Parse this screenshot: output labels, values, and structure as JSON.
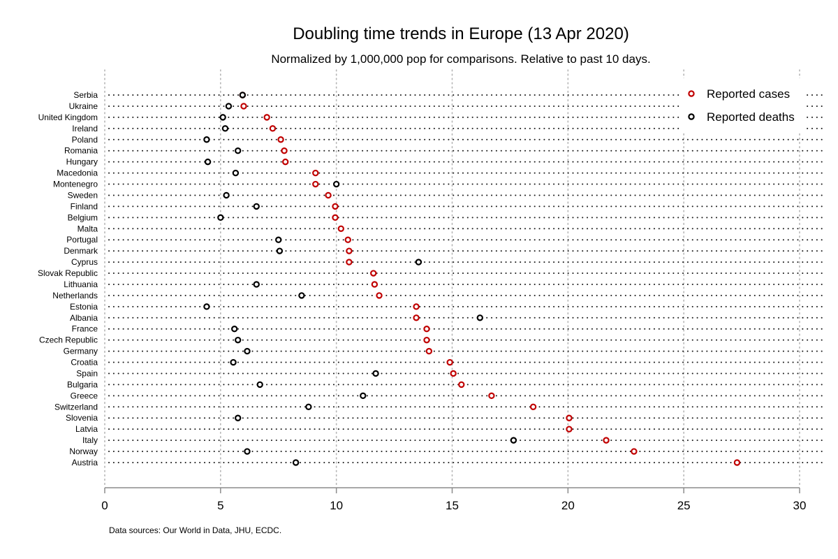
{
  "chart_data": {
    "type": "scatter",
    "title": "Doubling time trends in Europe (13 Apr 2020)",
    "subtitle": "Normalized by 1,000,000 pop for comparisons. Relative to past 10 days.",
    "xlabel": "",
    "ylabel": "",
    "xlim": [
      0,
      30
    ],
    "xticks": [
      0,
      5,
      10,
      15,
      20,
      25,
      30
    ],
    "grid": true,
    "legend_position": "top-right",
    "source": "Data sources: Our World in Data, JHU, ECDC.",
    "categories": [
      "Serbia",
      "Ukraine",
      "United Kingdom",
      "Ireland",
      "Poland",
      "Romania",
      "Hungary",
      "Macedonia",
      "Montenegro",
      "Sweden",
      "Finland",
      "Belgium",
      "Malta",
      "Portugal",
      "Denmark",
      "Cyprus",
      "Slovak Republic",
      "Lithuania",
      "Netherlands",
      "Estonia",
      "Albania",
      "France",
      "Czech Republic",
      "Germany",
      "Croatia",
      "Spain",
      "Bulgaria",
      "Greece",
      "Switzerland",
      "Slovenia",
      "Latvia",
      "Italy",
      "Norway",
      "Austria"
    ],
    "series": [
      {
        "name": "Reported cases",
        "color": "#c00000",
        "values": [
          5.95,
          6.0,
          7.0,
          7.25,
          7.6,
          7.75,
          7.8,
          9.1,
          9.1,
          9.65,
          9.95,
          9.95,
          10.2,
          10.5,
          10.55,
          10.55,
          11.6,
          11.65,
          11.85,
          13.45,
          13.45,
          13.9,
          13.9,
          14.0,
          14.9,
          15.05,
          15.4,
          16.7,
          18.5,
          20.05,
          20.05,
          21.65,
          22.85,
          27.3
        ]
      },
      {
        "name": "Reported deaths",
        "color": "#000000",
        "values": [
          5.95,
          5.35,
          5.1,
          5.2,
          4.4,
          5.75,
          4.45,
          5.65,
          10.0,
          5.25,
          6.55,
          5.0,
          null,
          7.5,
          7.55,
          13.55,
          null,
          6.55,
          8.5,
          4.4,
          16.2,
          5.6,
          5.75,
          6.15,
          5.55,
          11.7,
          6.7,
          11.15,
          8.8,
          5.75,
          null,
          17.65,
          6.15,
          8.25
        ]
      }
    ]
  }
}
